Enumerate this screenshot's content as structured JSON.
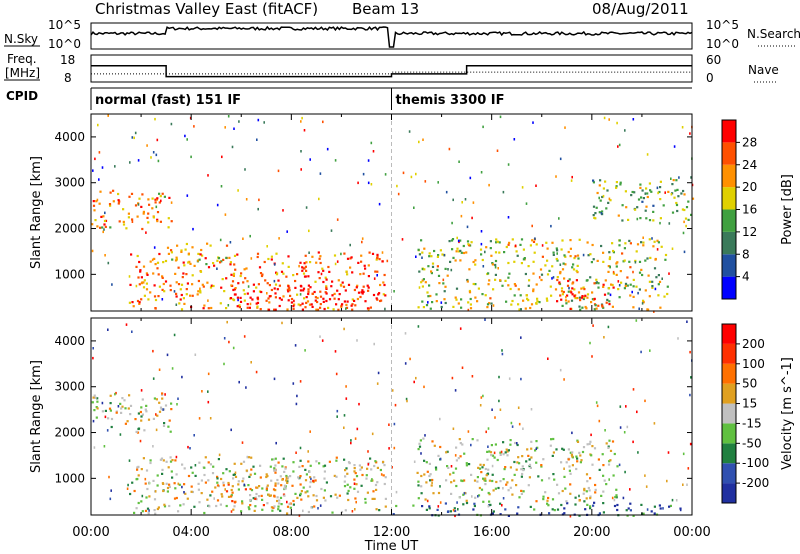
{
  "header": {
    "title": "Christmas Valley East (fitACF)",
    "beam": "Beam 13",
    "date": "08/Aug/2011"
  },
  "strip": {
    "n_sky_label": "N.Sky",
    "n_search_label": "N.Search",
    "sky_ticks": [
      "10^5",
      "10^0"
    ],
    "search_ticks": [
      "10^5",
      "10^0"
    ],
    "freq_label": [
      "Freq.",
      "[MHz]"
    ],
    "freq_ticks": [
      "18",
      "8"
    ],
    "nave_label": "Nave",
    "nave_ticks": [
      "60",
      "0"
    ],
    "cpid_label": "CPID",
    "cpid_segments": [
      {
        "start": 0,
        "end": 12,
        "label": "normal (fast) 151 IF"
      },
      {
        "start": 12,
        "end": 24,
        "label": "themis 3300 IF"
      }
    ],
    "freq_series": [
      [
        0,
        14
      ],
      [
        3,
        14
      ],
      [
        3,
        10
      ],
      [
        12,
        10
      ],
      [
        12,
        11
      ],
      [
        15,
        11
      ],
      [
        15,
        14
      ],
      [
        24,
        14
      ]
    ],
    "nave_series": [
      [
        0,
        18
      ],
      [
        12,
        18
      ],
      [
        12,
        22
      ],
      [
        24,
        22
      ]
    ]
  },
  "chart_data": [
    {
      "type": "heatmap",
      "name": "power-panel",
      "xlabel": "",
      "ylabel": "Slant Range [km]",
      "xlim": [
        0,
        24
      ],
      "ylim": [
        200,
        4500
      ],
      "yticks": [
        1000,
        2000,
        3000,
        4000
      ],
      "colorbar": {
        "label": "Power [dB]",
        "ticks": [
          4,
          8,
          12,
          16,
          20,
          24,
          28
        ]
      },
      "echo_regions": [
        {
          "t0": 0.0,
          "t1": 3.2,
          "r0": 2000,
          "r1": 2900,
          "level": 0.7
        },
        {
          "t0": 1.5,
          "t1": 11.8,
          "r0": 250,
          "r1": 1500,
          "level": 0.75
        },
        {
          "t0": 3.0,
          "t1": 5.5,
          "r0": 1200,
          "r1": 1700,
          "level": 0.6
        },
        {
          "t0": 5.5,
          "t1": 11.8,
          "r0": 250,
          "r1": 800,
          "level": 0.95
        },
        {
          "t0": 13.0,
          "t1": 23.0,
          "r0": 250,
          "r1": 1800,
          "level": 0.55
        },
        {
          "t0": 18.5,
          "t1": 21.0,
          "r0": 250,
          "r1": 900,
          "level": 0.85
        },
        {
          "t0": 20.0,
          "t1": 24.0,
          "r0": 2200,
          "r1": 3100,
          "level": 0.45
        }
      ]
    },
    {
      "type": "heatmap",
      "name": "velocity-panel",
      "xlabel": "Time UT",
      "ylabel": "Slant Range [km]",
      "xlim": [
        0,
        24
      ],
      "ylim": [
        200,
        4500
      ],
      "yticks": [
        1000,
        2000,
        3000,
        4000
      ],
      "xticks": [
        "00:00",
        "04:00",
        "08:00",
        "12:00",
        "16:00",
        "20:00",
        "00:00"
      ],
      "colorbar": {
        "label": "Velocity [m s^-1]",
        "ticks": [
          200,
          100,
          50,
          15,
          -15,
          -50,
          -100,
          -200
        ]
      },
      "echo_regions": [
        {
          "t0": 0.0,
          "t1": 3.2,
          "r0": 2000,
          "r1": 2900,
          "level": 0.5
        },
        {
          "t0": 1.5,
          "t1": 11.8,
          "r0": 250,
          "r1": 1500,
          "level": 0.5
        },
        {
          "t0": 5.0,
          "t1": 9.0,
          "r0": 400,
          "r1": 1100,
          "level": 0.65
        },
        {
          "t0": 12.0,
          "t1": 23.5,
          "r0": 200,
          "r1": 500,
          "level": 0.2
        },
        {
          "t0": 13.0,
          "t1": 21.0,
          "r0": 500,
          "r1": 1900,
          "level": 0.5
        }
      ]
    }
  ],
  "colors": {
    "power": [
      "#0000ff",
      "#2050a0",
      "#3a7a5a",
      "#40a040",
      "#e0d000",
      "#ff9000",
      "#ff5000",
      "#ff0000"
    ],
    "velocity": [
      "#2030a0",
      "#3050b0",
      "#208040",
      "#60c040",
      "#c0c0c0",
      "#e0a020",
      "#ff7000",
      "#ff3000",
      "#ff0000"
    ],
    "ground": "#a0a0a0"
  }
}
